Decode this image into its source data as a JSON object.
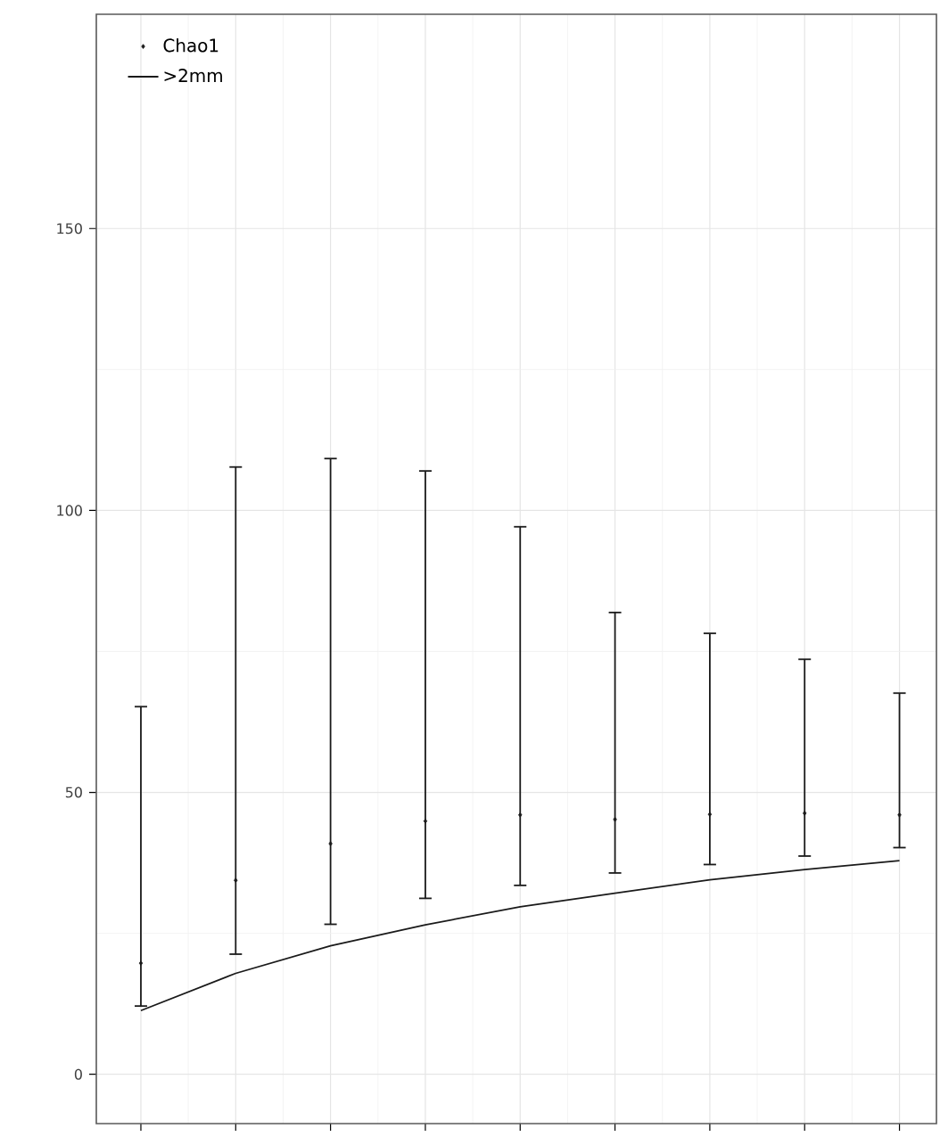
{
  "chart_data": {
    "type": "scatter",
    "categories": [
      null,
      null,
      null,
      null,
      null,
      null,
      null,
      null,
      null
    ],
    "series": [
      {
        "name": "Chao1",
        "marker": "diamond",
        "color": "#1a1a1a",
        "values": [
          19.7,
          34.4,
          40.9,
          44.9,
          46.0,
          45.2,
          46.1,
          46.3,
          46.0
        ],
        "errors": [
          [
            12.1,
            65.2
          ],
          [
            21.3,
            107.7
          ],
          [
            26.6,
            109.2
          ],
          [
            31.2,
            107.0
          ],
          [
            33.5,
            97.1
          ],
          [
            35.7,
            81.9
          ],
          [
            37.2,
            78.2
          ],
          [
            38.7,
            73.6
          ],
          [
            40.2,
            67.6
          ]
        ]
      },
      {
        "name": ">2mm",
        "type": "line",
        "marker": "none",
        "color": "#1a1a1a",
        "values": [
          11.3,
          17.9,
          22.8,
          26.5,
          29.7,
          32.1,
          34.5,
          36.3,
          37.9
        ]
      }
    ],
    "ylim": [
      -8.75,
      188
    ],
    "yticks": [
      0,
      50,
      100,
      150
    ],
    "tick_labels": "y",
    "grid": true,
    "legend": "top left"
  }
}
